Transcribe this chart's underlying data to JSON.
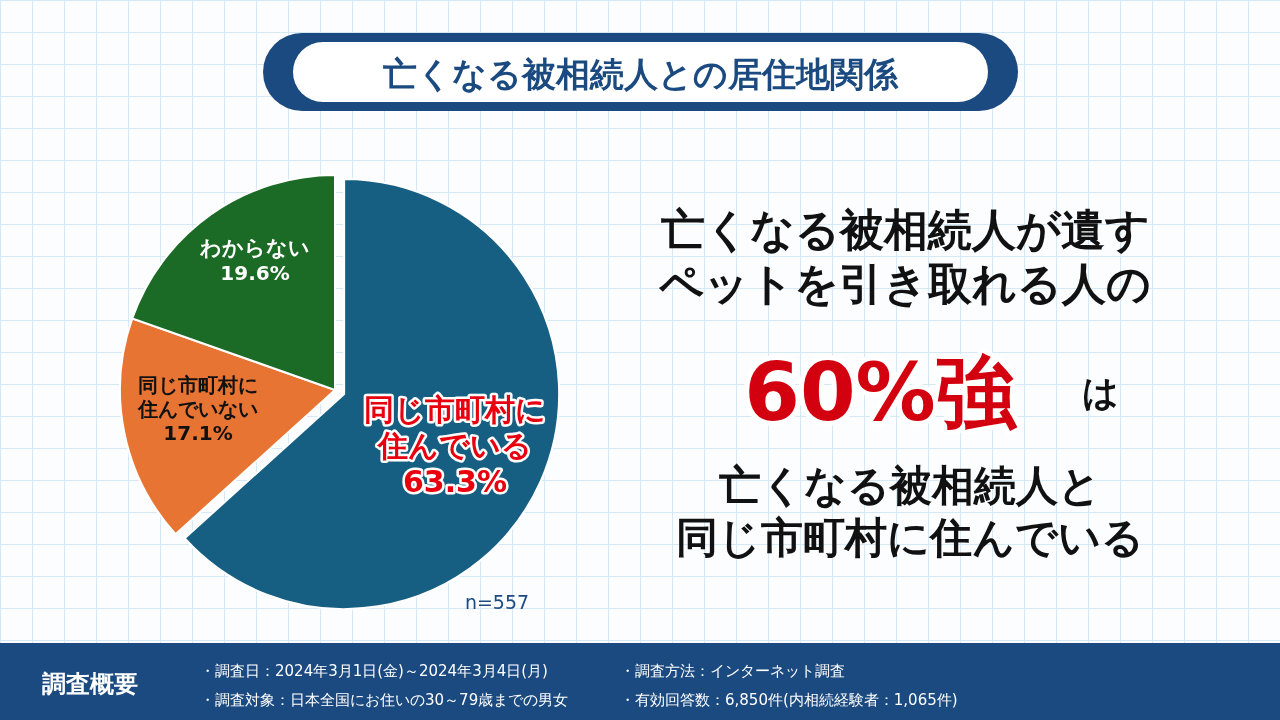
{
  "chart_data": {
    "type": "pie",
    "title": "亡くなる被相続人との居住地関係",
    "categories": [
      "同じ市町村に住んでいる",
      "同じ市町村に住んでいない",
      "わからない"
    ],
    "values": [
      63.3,
      17.1,
      19.6
    ],
    "colors": [
      "#175f82",
      "#e87434",
      "#1b6a25"
    ],
    "value_labels": [
      "63.3%",
      "17.1%",
      "19.6%"
    ],
    "annotations": [
      "n=557",
      "亡くなる被相続人が遺す",
      "ペットを引き取れる人の",
      "60%強",
      "は",
      "亡くなる被相続人と",
      "同じ市町村に住んでいる",
      "調査概要",
      "・調査日：2024年3月1日(金)～2024年3月4日(月)",
      "・調査対象：日本全国にお住いの30～79歳までの男女",
      "・調査方法：インターネット調査",
      "・有効回答数：6,850件(内相続経験者：1,065件)"
    ]
  }
}
